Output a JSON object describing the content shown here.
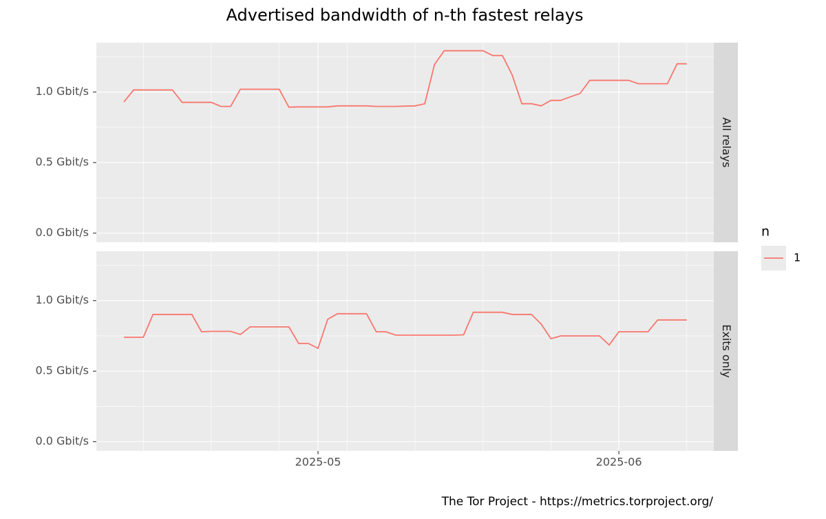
{
  "chart_data": {
    "type": "line",
    "title": "Advertised bandwidth of n-th fastest relays",
    "caption": "The Tor Project - https://metrics.torproject.org/",
    "legend": {
      "title": "n",
      "position": "right"
    },
    "series": [
      {
        "name": "1",
        "color": "#F8766D"
      }
    ],
    "panels": [
      {
        "label": "All relays",
        "values": [
          0.93,
          1.015,
          1.015,
          1.015,
          1.015,
          1.015,
          0.927,
          0.927,
          0.927,
          0.927,
          0.898,
          0.898,
          1.02,
          1.02,
          1.02,
          1.02,
          1.02,
          0.893,
          0.895,
          0.895,
          0.895,
          0.895,
          0.902,
          0.902,
          0.902,
          0.902,
          0.898,
          0.898,
          0.898,
          0.9,
          0.902,
          0.917,
          1.195,
          1.293,
          1.293,
          1.293,
          1.293,
          1.293,
          1.259,
          1.259,
          1.122,
          0.917,
          0.917,
          0.902,
          0.941,
          0.941,
          0.966,
          0.99,
          1.083,
          1.083,
          1.083,
          1.083,
          1.083,
          1.059,
          1.059,
          1.059,
          1.059,
          1.2,
          1.2
        ]
      },
      {
        "label": "Exits only",
        "values": [
          0.74,
          0.74,
          0.74,
          0.902,
          0.902,
          0.902,
          0.902,
          0.902,
          0.779,
          0.782,
          0.782,
          0.782,
          0.76,
          0.814,
          0.814,
          0.814,
          0.814,
          0.814,
          0.696,
          0.696,
          0.662,
          0.868,
          0.907,
          0.907,
          0.907,
          0.907,
          0.779,
          0.779,
          0.755,
          0.755,
          0.755,
          0.755,
          0.755,
          0.755,
          0.755,
          0.757,
          0.917,
          0.917,
          0.917,
          0.917,
          0.902,
          0.902,
          0.902,
          0.833,
          0.73,
          0.75,
          0.75,
          0.75,
          0.75,
          0.75,
          0.686,
          0.779,
          0.779,
          0.779,
          0.779,
          0.863,
          0.863,
          0.863,
          0.863
        ]
      }
    ],
    "xlim": [
      -2.84,
      60.78
    ],
    "xticks": [
      {
        "value": 20,
        "label": "2025-05"
      },
      {
        "value": 51,
        "label": "2025-06"
      }
    ],
    "xminor": [
      2,
      9,
      16,
      23,
      30,
      37,
      44,
      58
    ],
    "ylim": [
      -0.065,
      1.35
    ],
    "yticks": [
      {
        "value": 0,
        "label": "0.0 Gbit/s"
      },
      {
        "value": 0.5,
        "label": "0.5 Gbit/s"
      },
      {
        "value": 1,
        "label": "1.0 Gbit/s"
      }
    ],
    "yminor": [
      0.25,
      0.75,
      1.25
    ],
    "grid": true
  }
}
